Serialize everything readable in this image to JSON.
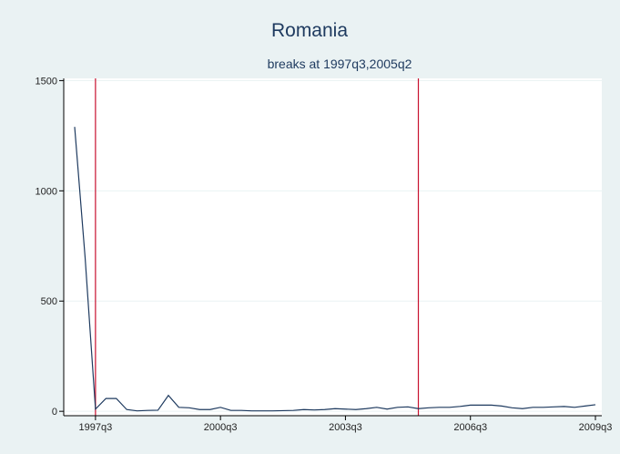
{
  "chart_data": {
    "type": "line",
    "title": "Romania",
    "subtitle": "breaks at 1997q3,2005q2",
    "xlabel": "",
    "ylabel": "",
    "x_ticks": [
      "1997q3",
      "2000q3",
      "2003q3",
      "2009q3"
    ],
    "x_tick_extra": "2006q3",
    "y_ticks": [
      "0",
      "500",
      "1000",
      "1500"
    ],
    "ylim": [
      -20,
      1510
    ],
    "xlim": [
      "1996q4",
      "2009q3"
    ],
    "grid": true,
    "breaks": [
      "1997q3",
      "2005q2"
    ],
    "series": [
      {
        "x": [
          "1997q1",
          "1997q2",
          "1997q3",
          "1997q4",
          "1998q1",
          "1998q2",
          "1998q3",
          "1998q4",
          "1999q1",
          "1999q2",
          "1999q3",
          "1999q4",
          "2000q1",
          "2000q2",
          "2000q3",
          "2000q4",
          "2001q1",
          "2001q2",
          "2001q3",
          "2001q4",
          "2002q1",
          "2002q2",
          "2002q3",
          "2002q4",
          "2003q1",
          "2003q2",
          "2003q3",
          "2003q4",
          "2004q1",
          "2004q2",
          "2004q3",
          "2004q4",
          "2005q1",
          "2005q2",
          "2005q3",
          "2005q4",
          "2006q1",
          "2006q2",
          "2006q3",
          "2006q4",
          "2007q1",
          "2007q2",
          "2007q3",
          "2007q4",
          "2008q1",
          "2008q2",
          "2008q3",
          "2008q4",
          "2009q1",
          "2009q2",
          "2009q3"
        ],
        "values": [
          1290,
          700,
          10,
          58,
          58,
          8,
          2,
          4,
          5,
          72,
          18,
          16,
          8,
          8,
          18,
          4,
          4,
          2,
          2,
          2,
          3,
          4,
          8,
          6,
          8,
          12,
          10,
          8,
          12,
          18,
          10,
          18,
          20,
          12,
          16,
          18,
          18,
          22,
          28,
          28,
          28,
          24,
          16,
          12,
          18,
          18,
          20,
          22,
          18,
          24,
          30
        ]
      }
    ],
    "colors": {
      "outer_bg": "#eaf2f3",
      "plot_bg": "#ffffff",
      "line": "#1e3a5f",
      "break_line": "#c8102e",
      "grid": "#eaf2f3"
    }
  }
}
